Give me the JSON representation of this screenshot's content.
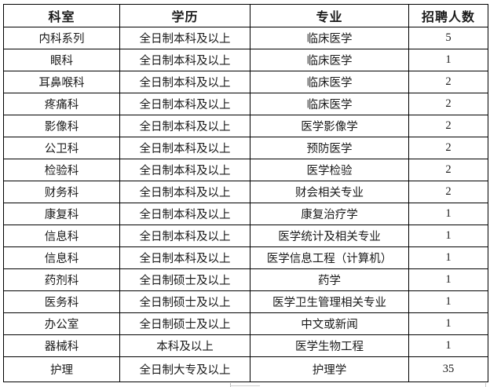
{
  "table": {
    "columns": [
      "科室",
      "学历",
      "专业",
      "招聘人数"
    ],
    "rows": [
      {
        "dept": "内科系列",
        "edu": "全日制本科及以上",
        "major": "临床医学",
        "count": "5"
      },
      {
        "dept": "眼科",
        "edu": "全日制本科及以上",
        "major": "临床医学",
        "count": "1"
      },
      {
        "dept": "耳鼻喉科",
        "edu": "全日制本科及以上",
        "major": "临床医学",
        "count": "2"
      },
      {
        "dept": "疼痛科",
        "edu": "全日制本科及以上",
        "major": "临床医学",
        "count": "2"
      },
      {
        "dept": "影像科",
        "edu": "全日制本科及以上",
        "major": "医学影像学",
        "count": "2"
      },
      {
        "dept": "公卫科",
        "edu": "全日制本科及以上",
        "major": "预防医学",
        "count": "2"
      },
      {
        "dept": "检验科",
        "edu": "全日制本科及以上",
        "major": "医学检验",
        "count": "2"
      },
      {
        "dept": "财务科",
        "edu": "全日制本科及以上",
        "major": "财会相关专业",
        "count": "2"
      },
      {
        "dept": "康复科",
        "edu": "全日制本科及以上",
        "major": "康复治疗学",
        "count": "1"
      },
      {
        "dept": "信息科",
        "edu": "全日制本科及以上",
        "major": "医学统计及相关专业",
        "count": "1"
      },
      {
        "dept": "信息科",
        "edu": "全日制本科及以上",
        "major": "医学信息工程（计算机）",
        "count": "1"
      },
      {
        "dept": "药剂科",
        "edu": "全日制硕士及以上",
        "major": "药学",
        "count": "1"
      },
      {
        "dept": "医务科",
        "edu": "全日制硕士及以上",
        "major": "医学卫生管理相关专业",
        "count": "1"
      },
      {
        "dept": "办公室",
        "edu": "全日制硕士及以上",
        "major": "中文或新闻",
        "count": "1"
      },
      {
        "dept": "器械科",
        "edu": "本科及以上",
        "major": "医学生物工程",
        "count": "1"
      },
      {
        "dept": "护理",
        "edu": "全日制大专及以上",
        "major": "护理学",
        "count": "35"
      }
    ]
  }
}
